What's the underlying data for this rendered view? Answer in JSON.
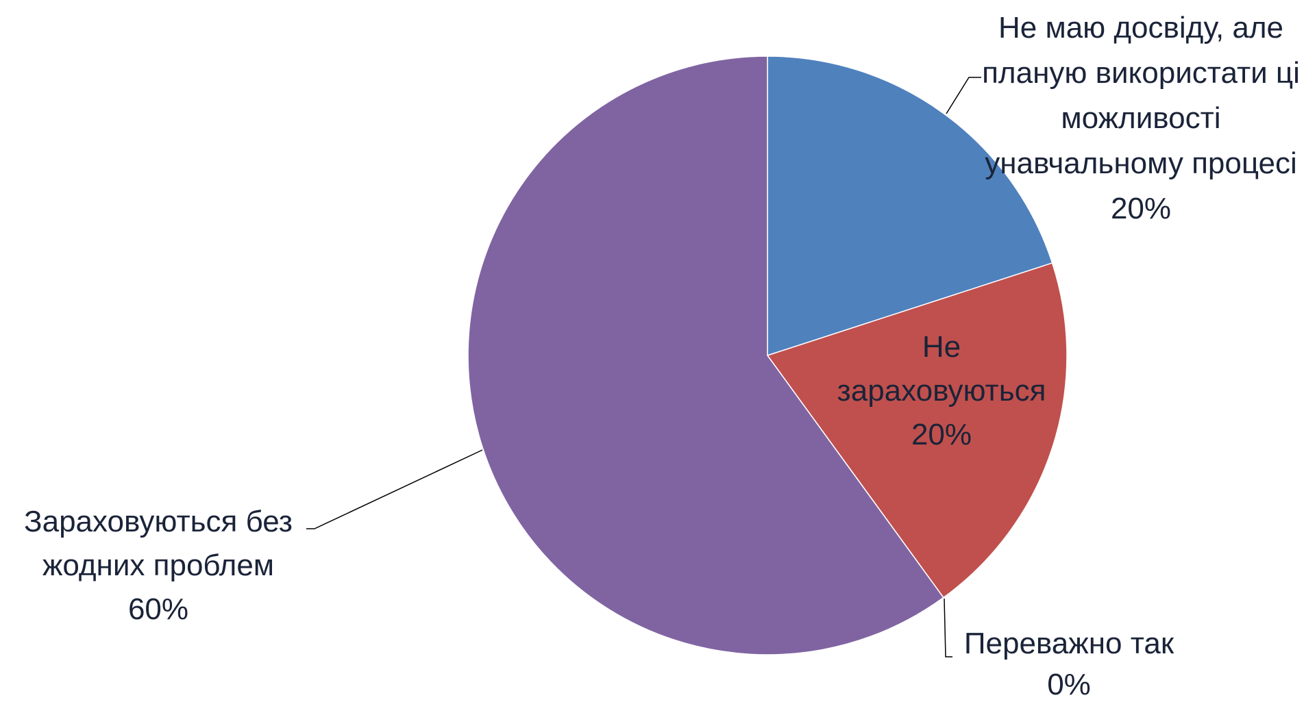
{
  "chart_data": {
    "type": "pie",
    "categories": [
      "Не маю досвіду, але планую використати ці можливості унавчальному процесі",
      "Не зараховуються",
      "Переважно так",
      "Зараховуються без жодних проблем"
    ],
    "values": [
      20,
      20,
      0,
      60
    ],
    "value_labels": [
      "20%",
      "20%",
      "0%",
      "60%"
    ],
    "colors": [
      "#4f81bd",
      "#c0504d",
      "#9bbb59",
      "#8064a2"
    ]
  }
}
